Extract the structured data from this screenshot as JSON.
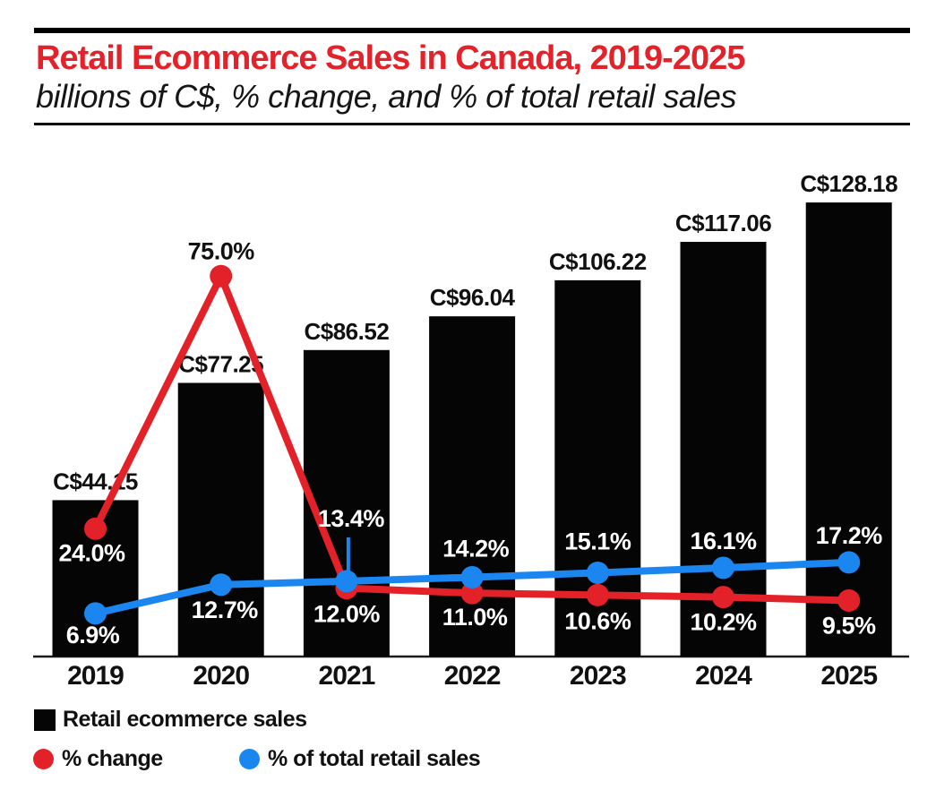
{
  "chart_data": {
    "type": "bar+line",
    "title": "Retail Ecommerce Sales in Canada, 2019-2025",
    "subtitle": "billions of C$, % change, and % of total retail sales",
    "categories": [
      "2019",
      "2020",
      "2021",
      "2022",
      "2023",
      "2024",
      "2025"
    ],
    "series": [
      {
        "name": "Retail ecommerce sales",
        "type": "bar",
        "unit": "billions of C$",
        "color": "#050505",
        "values": [
          44.15,
          77.25,
          86.52,
          96.04,
          106.22,
          117.06,
          128.18
        ],
        "labels": [
          "C$44.15",
          "C$77.25",
          "C$86.52",
          "C$96.04",
          "C$106.22",
          "C$117.06",
          "C$128.18"
        ]
      },
      {
        "name": "% change",
        "type": "line",
        "color": "#e32129",
        "values": [
          24.0,
          75.0,
          12.0,
          11.0,
          10.6,
          10.2,
          9.5
        ],
        "labels": [
          "24.0%",
          "75.0%",
          "12.0%",
          "11.0%",
          "10.6%",
          "10.2%",
          "9.5%"
        ]
      },
      {
        "name": "% of total retail sales",
        "type": "line",
        "color": "#1b86f0",
        "values": [
          6.9,
          12.7,
          13.4,
          14.2,
          15.1,
          16.1,
          17.2
        ],
        "labels": [
          "6.9%",
          "12.7%",
          "13.4%",
          "14.2%",
          "15.1%",
          "16.1%",
          "17.2%"
        ]
      }
    ],
    "bar_axis_range": [
      0,
      135
    ],
    "pct_axis_range": [
      0,
      80
    ],
    "grid": false,
    "legend_position": "bottom-left",
    "callout": {
      "series": "% of total retail sales",
      "category": "2021",
      "label": "13.4%"
    }
  },
  "header": {
    "title_color": "#e4222a",
    "rule_color": "#000000"
  },
  "style_colors": {
    "bar_value_label": "#111111",
    "pct_label_on_bar": "#ffffff",
    "pct_label_peak": "#111111",
    "axis": "#1a1a1a"
  }
}
